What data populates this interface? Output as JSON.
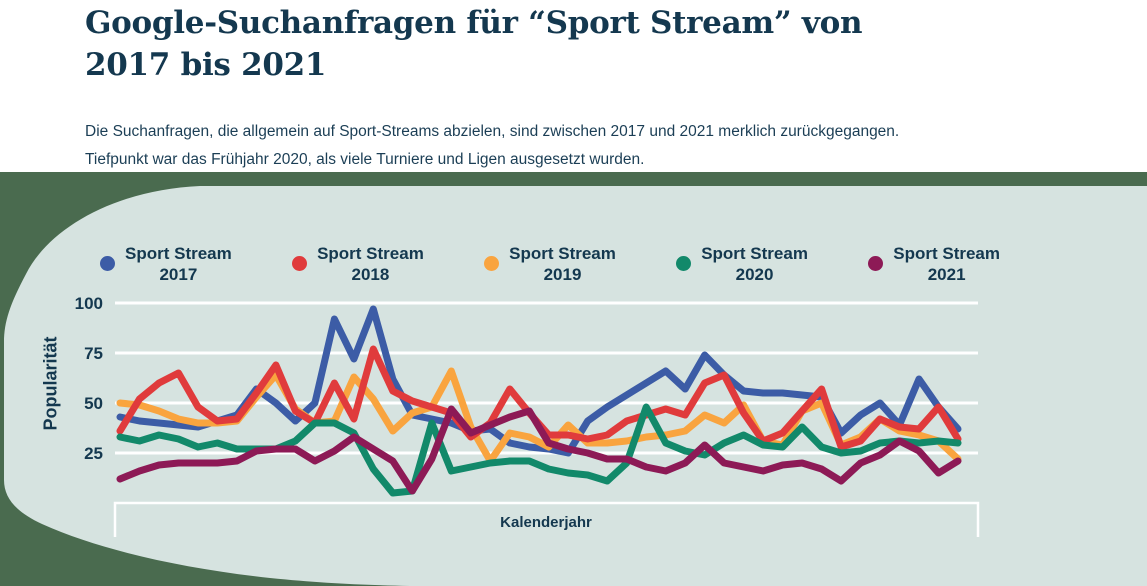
{
  "header": {
    "title_line1": "Google-Suchanfragen für “Sport Stream” von",
    "title_line2": "2017 bis 2021",
    "subtitle_line1": "Die Suchanfragen, die allgemein auf Sport-Streams abzielen, sind zwischen 2017 und 2021 merklich zurückgegangen.",
    "subtitle_line2": "Tiefpunkt war das Frühjahr 2020, als viele Turniere und Ligen ausgesetzt wurden."
  },
  "colors": {
    "title_text": "#14384f",
    "outer_background": "#4a6b4f",
    "panel_background": "#d6e3e0",
    "gridline": "#ffffff"
  },
  "chart_data": {
    "type": "line",
    "xlabel": "Kalenderjahr",
    "ylabel": "Popularität",
    "ylim": [
      0,
      100
    ],
    "yticks": [
      100,
      75,
      50,
      25
    ],
    "grid": true,
    "legend_position": "top",
    "series": [
      {
        "name": "Sport Stream 2017",
        "legend_line1": "Sport Stream",
        "legend_line2": "2017",
        "color": "#3c5ca6",
        "values": [
          43,
          41,
          40,
          39,
          38,
          41,
          44,
          57,
          50,
          41,
          50,
          92,
          72,
          97,
          62,
          44,
          42,
          40,
          36,
          37,
          30,
          28,
          27,
          25,
          41,
          48,
          54,
          60,
          66,
          57,
          74,
          64,
          56,
          55,
          55,
          54,
          53,
          35,
          44,
          50,
          39,
          62,
          48,
          37
        ]
      },
      {
        "name": "Sport Stream 2018",
        "legend_line1": "Sport Stream",
        "legend_line2": "2018",
        "color": "#e03b3c",
        "values": [
          36,
          52,
          60,
          65,
          48,
          41,
          42,
          55,
          69,
          46,
          40,
          60,
          42,
          77,
          56,
          51,
          48,
          45,
          33,
          40,
          57,
          45,
          34,
          34,
          32,
          34,
          41,
          44,
          47,
          44,
          60,
          64,
          45,
          31,
          35,
          46,
          57,
          28,
          31,
          42,
          38,
          37,
          48,
          32
        ]
      },
      {
        "name": "Sport Stream 2019",
        "legend_line1": "Sport Stream",
        "legend_line2": "2019",
        "color": "#f9a43f",
        "values": [
          50,
          49,
          46,
          42,
          40,
          40,
          41,
          53,
          64,
          47,
          40,
          41,
          63,
          52,
          36,
          45,
          48,
          66,
          38,
          21,
          35,
          33,
          28,
          39,
          30,
          30,
          31,
          33,
          34,
          36,
          44,
          40,
          49,
          31,
          29,
          46,
          50,
          29,
          33,
          42,
          36,
          34,
          31,
          22
        ]
      },
      {
        "name": "Sport Stream 2020",
        "legend_line1": "Sport Stream",
        "legend_line2": "2020",
        "color": "#12896a",
        "values": [
          33,
          31,
          34,
          32,
          28,
          30,
          27,
          27,
          27,
          31,
          40,
          40,
          35,
          17,
          5,
          6,
          40,
          16,
          18,
          20,
          21,
          21,
          17,
          15,
          14,
          11,
          20,
          48,
          30,
          26,
          24,
          30,
          34,
          29,
          28,
          38,
          28,
          25,
          26,
          30,
          31,
          30,
          31,
          30
        ]
      },
      {
        "name": "Sport Stream 2021",
        "legend_line1": "Sport Stream",
        "legend_line2": "2021",
        "color": "#8d1a56",
        "values": [
          12,
          16,
          19,
          20,
          20,
          20,
          21,
          26,
          27,
          27,
          21,
          26,
          33,
          27,
          21,
          6,
          22,
          47,
          35,
          39,
          43,
          46,
          30,
          27,
          25,
          22,
          22,
          18,
          16,
          20,
          29,
          20,
          18,
          16,
          19,
          20,
          17,
          11,
          20,
          24,
          31,
          26,
          15,
          21
        ]
      }
    ]
  }
}
